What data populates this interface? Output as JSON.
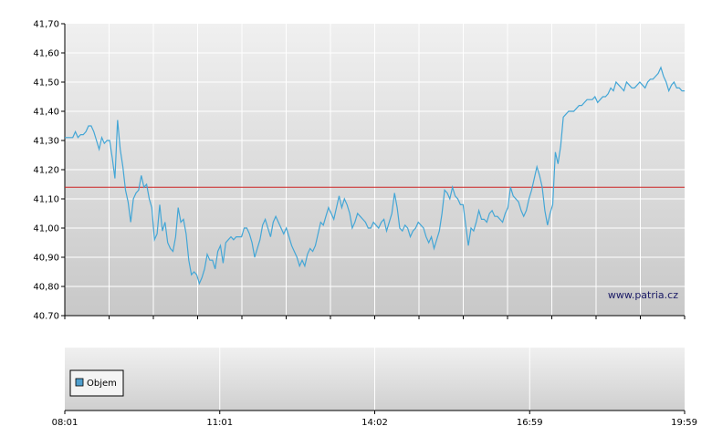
{
  "watermark": "www.patria.cz",
  "legend": {
    "label": "Objem",
    "color": "#4f9fce"
  },
  "colors": {
    "line": "#43a6d6",
    "reference": "#cc2222"
  },
  "chart_data": [
    {
      "type": "line",
      "title": "",
      "xlabel": "",
      "ylabel": "",
      "ylim": [
        40.7,
        41.7
      ],
      "y_ticks": [
        "41,70",
        "41,60",
        "41,50",
        "41,40",
        "41,30",
        "41,20",
        "41,10",
        "41,00",
        "40,90",
        "40,80",
        "40.70"
      ],
      "x_ticks": [
        "08:01",
        "11:01",
        "14:02",
        "16:59",
        "19:59"
      ],
      "grid": true,
      "reference_line": 41.14,
      "series": [
        {
          "values": [
            41.31,
            41.31,
            41.31,
            41.31,
            41.33,
            41.31,
            41.32,
            41.32,
            41.33,
            41.35,
            41.35,
            41.33,
            41.3,
            41.27,
            41.31,
            41.29,
            41.3,
            41.3,
            41.24,
            41.17,
            41.37,
            41.27,
            41.21,
            41.13,
            41.09,
            41.02,
            41.1,
            41.12,
            41.13,
            41.18,
            41.14,
            41.15,
            41.1,
            41.07,
            40.96,
            40.98,
            41.08,
            40.99,
            41.02,
            40.95,
            40.93,
            40.92,
            40.97,
            41.07,
            41.02,
            41.03,
            40.98,
            40.89,
            40.84,
            40.85,
            40.84,
            40.81,
            40.83,
            40.86,
            40.91,
            40.89,
            40.89,
            40.86,
            40.92,
            40.94,
            40.88,
            40.95,
            40.96,
            40.97,
            40.96,
            40.97,
            40.97,
            40.97,
            41.0,
            41.0,
            40.98,
            40.95,
            40.9,
            40.93,
            40.96,
            41.01,
            41.03,
            41.0,
            40.97,
            41.02,
            41.04,
            41.02,
            41.0,
            40.98,
            41.0,
            40.97,
            40.94,
            40.92,
            40.9,
            40.87,
            40.89,
            40.87,
            40.91,
            40.93,
            40.92,
            40.94,
            40.98,
            41.02,
            41.01,
            41.04,
            41.07,
            41.05,
            41.03,
            41.07,
            41.11,
            41.07,
            41.1,
            41.08,
            41.05,
            41.0,
            41.02,
            41.05,
            41.04,
            41.03,
            41.02,
            41.0,
            41.0,
            41.02,
            41.01,
            41.0,
            41.02,
            41.03,
            40.99,
            41.02,
            41.05,
            41.12,
            41.07,
            41.0,
            40.99,
            41.01,
            41.0,
            40.97,
            40.99,
            41.0,
            41.02,
            41.01,
            41.0,
            40.97,
            40.95,
            40.97,
            40.93,
            40.96,
            40.99,
            41.05,
            41.13,
            41.12,
            41.1,
            41.14,
            41.11,
            41.1,
            41.08,
            41.08,
            41.01,
            40.94,
            41.0,
            40.99,
            41.02,
            41.06,
            41.03,
            41.03,
            41.02,
            41.05,
            41.06,
            41.04,
            41.04,
            41.03,
            41.02,
            41.05,
            41.07,
            41.14,
            41.11,
            41.1,
            41.09,
            41.06,
            41.04,
            41.06,
            41.1,
            41.13,
            41.17,
            41.21,
            41.18,
            41.14,
            41.06,
            41.01,
            41.05,
            41.08,
            41.26,
            41.22,
            41.28,
            41.38,
            41.39,
            41.4,
            41.4,
            41.4,
            41.41,
            41.42,
            41.42,
            41.43,
            41.44,
            41.44,
            41.44,
            41.45,
            41.43,
            41.44,
            41.45,
            41.45,
            41.46,
            41.48,
            41.47,
            41.5,
            41.49,
            41.48,
            41.47,
            41.5,
            41.49,
            41.48,
            41.48,
            41.49,
            41.5,
            41.49,
            41.48,
            41.5,
            41.51,
            41.51,
            41.52,
            41.53,
            41.55,
            41.52,
            41.5,
            41.47,
            41.49,
            41.5,
            41.48,
            41.48,
            41.47,
            41.47
          ]
        }
      ]
    },
    {
      "type": "bar",
      "title": "",
      "series": [
        {
          "name": "Objem",
          "values": []
        }
      ],
      "x_ticks": [
        "08:01",
        "11:01",
        "14:02",
        "16:59",
        "19:59"
      ],
      "grid": true
    }
  ]
}
